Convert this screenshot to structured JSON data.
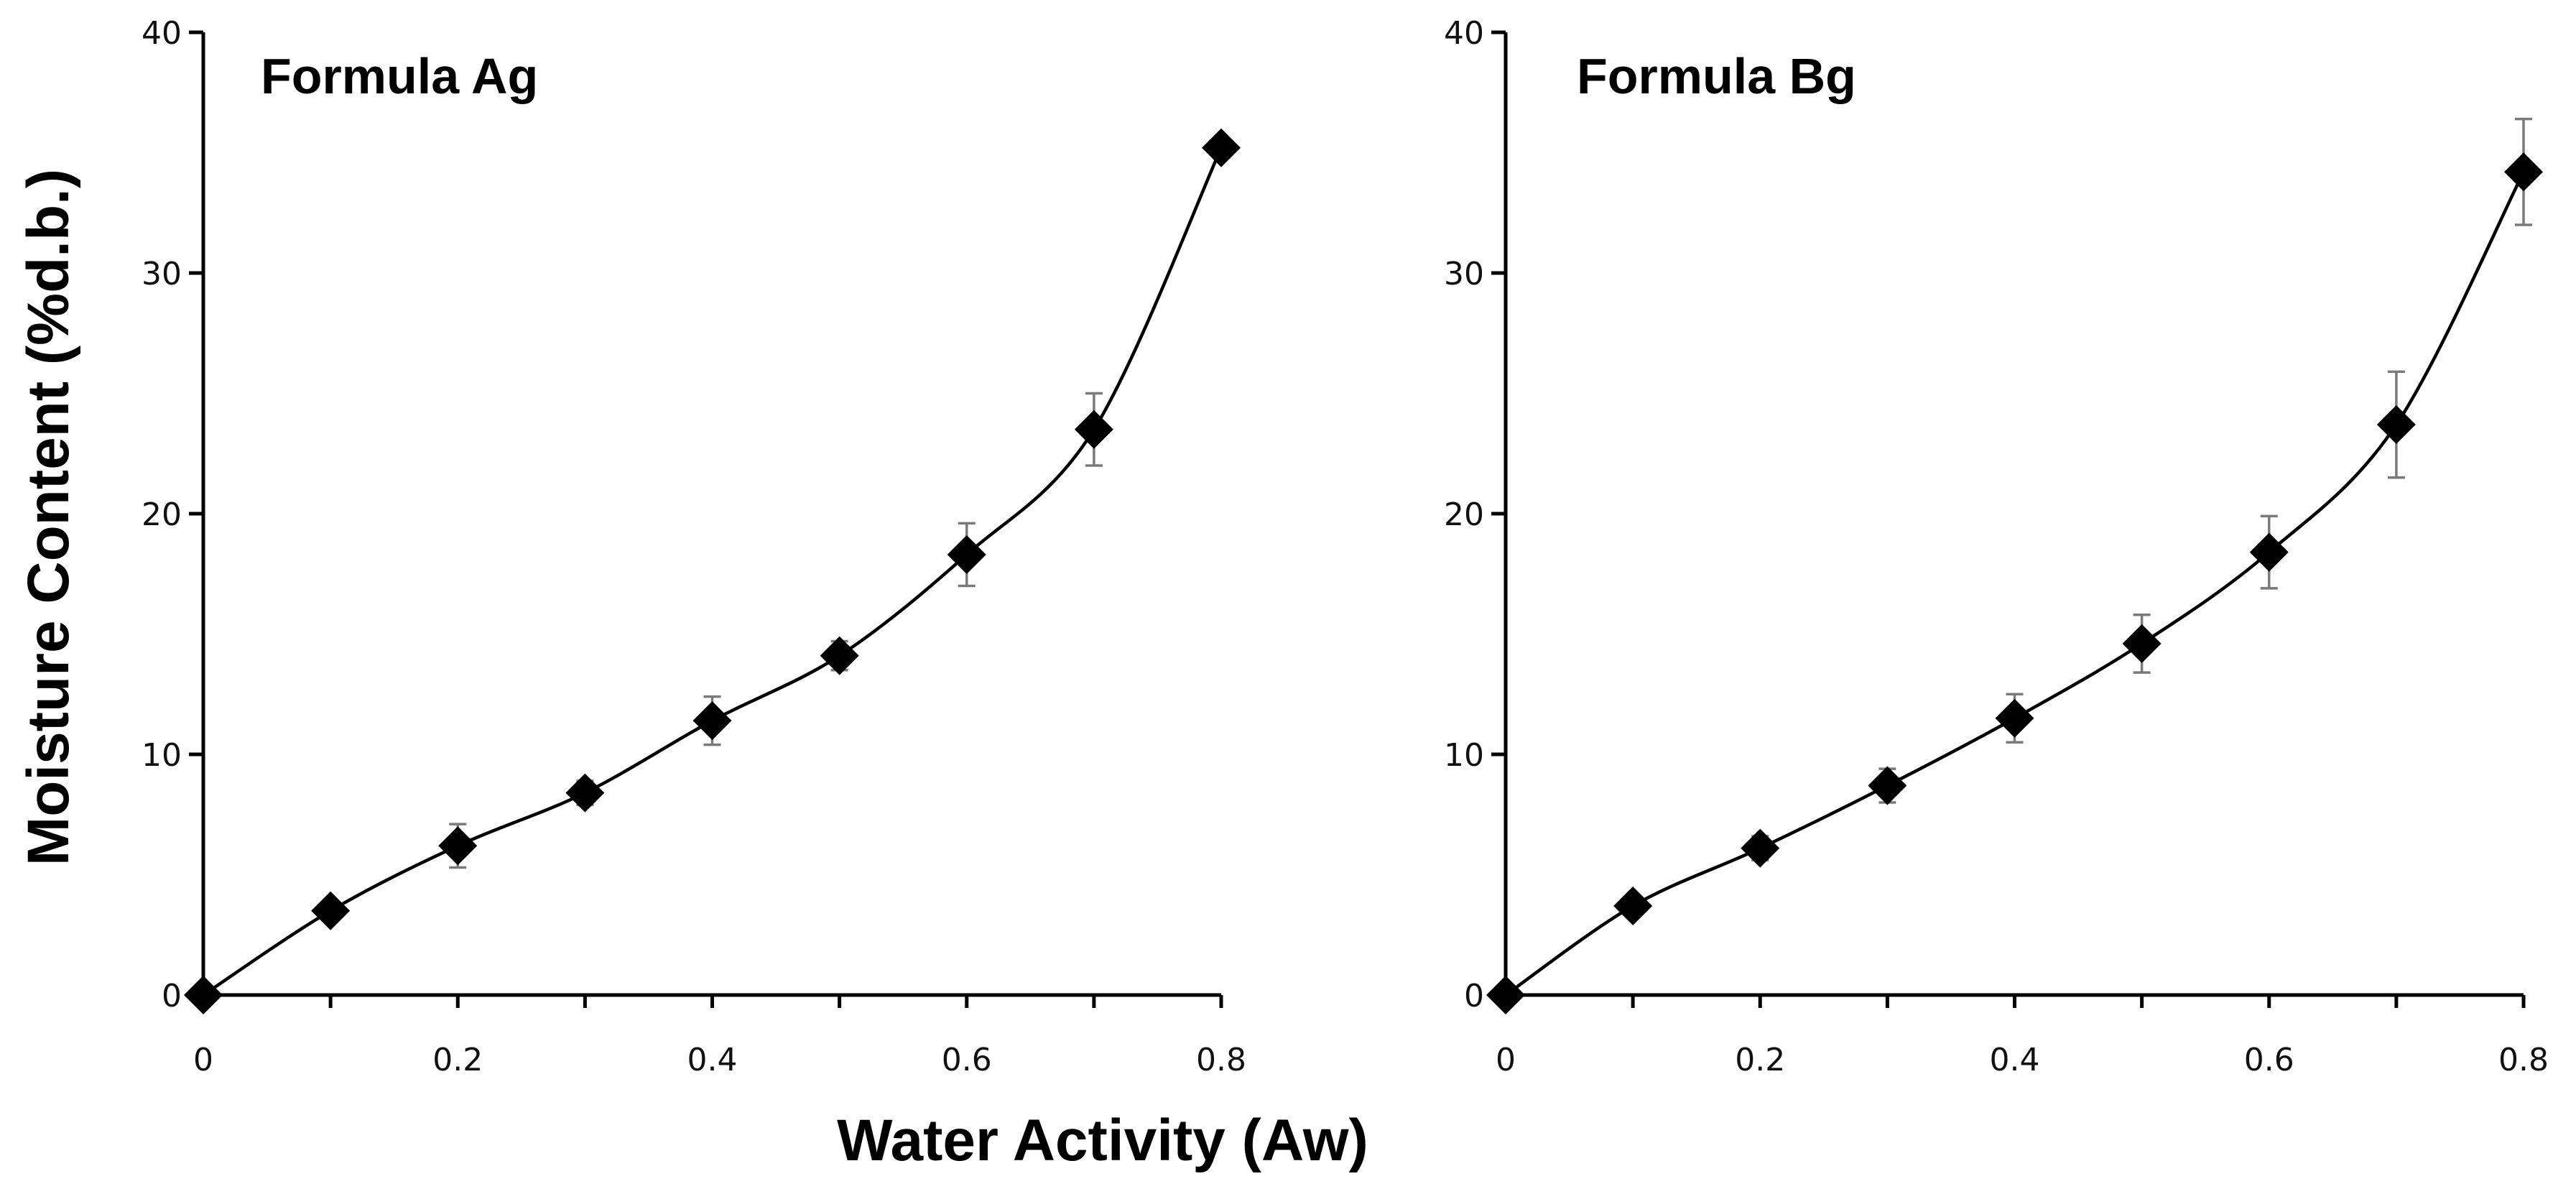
{
  "figure": {
    "xlabel": "Water Activity (Aw)",
    "ylabel": "Moisture Content (%d.b.)"
  },
  "chart_data": [
    {
      "type": "scatter",
      "title": "Formula Ag",
      "xlim": [
        0,
        0.8
      ],
      "ylim": [
        0,
        40
      ],
      "xticks": [
        "0",
        "0.2",
        "0.4",
        "0.6",
        "0.8"
      ],
      "yticks": [
        "0",
        "10",
        "20",
        "30",
        "40"
      ],
      "x": [
        0,
        0.1,
        0.2,
        0.3,
        0.4,
        0.5,
        0.6,
        0.7,
        0.8
      ],
      "y": [
        0,
        3.5,
        6.2,
        8.4,
        11.4,
        14.1,
        18.3,
        23.5,
        35.2
      ],
      "error": [
        0,
        0.4,
        0.9,
        0.5,
        1.0,
        0.6,
        1.3,
        1.5,
        0.4
      ],
      "fit": "smooth curve",
      "marker": "diamond"
    },
    {
      "type": "scatter",
      "title": "Formula Bg",
      "xlim": [
        0,
        0.8
      ],
      "ylim": [
        0,
        40
      ],
      "xticks": [
        "0",
        "0.2",
        "0.4",
        "0.6",
        "0.8"
      ],
      "yticks": [
        "0",
        "10",
        "20",
        "30",
        "40"
      ],
      "x": [
        0,
        0.1,
        0.2,
        0.3,
        0.4,
        0.5,
        0.6,
        0.7,
        0.8
      ],
      "y": [
        0,
        3.7,
        6.1,
        8.7,
        11.5,
        14.6,
        18.4,
        23.7,
        34.2
      ],
      "error": [
        0,
        0.4,
        0.5,
        0.7,
        1.0,
        1.2,
        1.5,
        2.2,
        2.2
      ],
      "fit": "smooth curve",
      "marker": "diamond"
    }
  ]
}
